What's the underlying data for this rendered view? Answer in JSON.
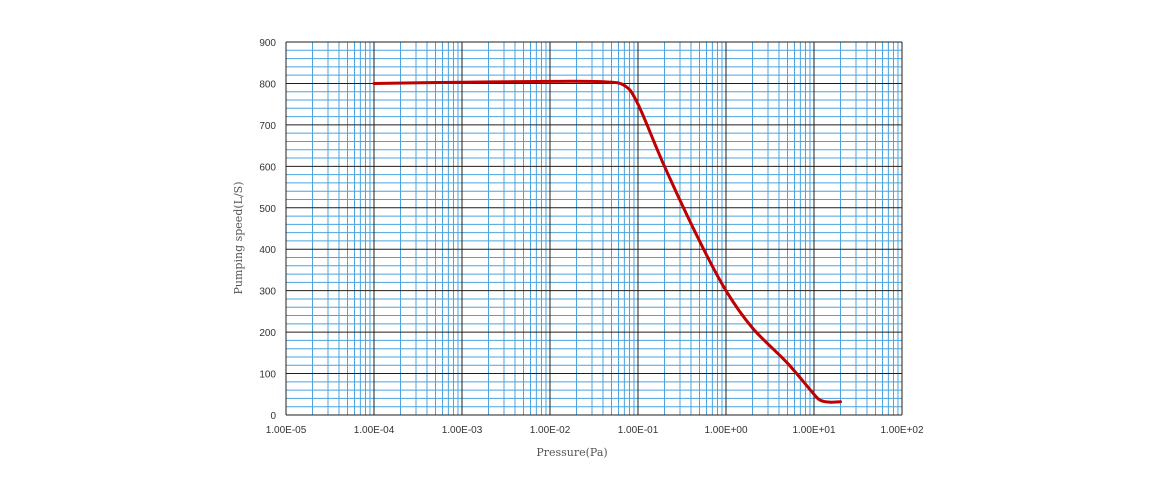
{
  "chart_data": {
    "type": "line",
    "title": "",
    "xlabel": "Pressure(Pa)",
    "ylabel": "Pumping speed(L/S)",
    "xscale": "log",
    "xlim": [
      1e-05,
      100
    ],
    "ylim": [
      0,
      900
    ],
    "x_tick_labels": [
      "1.00E-05",
      "1.00E-04",
      "1.00E-03",
      "1.00E-02",
      "1.00E-01",
      "1.00E+00",
      "1.00E+01",
      "1.00E+02"
    ],
    "y_tick_labels": [
      "0",
      "100",
      "200",
      "300",
      "400",
      "500",
      "600",
      "700",
      "800",
      "900"
    ],
    "y_tick_values": [
      0,
      100,
      200,
      300,
      400,
      500,
      600,
      700,
      800,
      900
    ],
    "grid": true,
    "series": [
      {
        "color": "#c00000",
        "x": [
          0.0001,
          0.001,
          0.01,
          0.04,
          0.07,
          0.1,
          0.2,
          0.5,
          1,
          2,
          5,
          10,
          12,
          15,
          20
        ],
        "y": [
          800,
          803,
          805,
          804,
          795,
          750,
          600,
          420,
          300,
          210,
          125,
          50,
          35,
          31,
          32
        ]
      }
    ]
  },
  "colors": {
    "minor_grid": "#4aa3df",
    "major_grid": "#1f1f1f",
    "line": "#c00000"
  }
}
